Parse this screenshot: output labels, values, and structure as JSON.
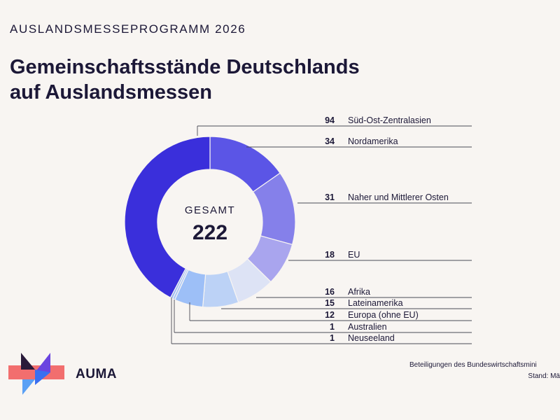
{
  "header": {
    "kicker": "AUSLANDSMESSEPROGRAMM 2026",
    "title_line1": "Gemeinschaftsstände Deutschlands",
    "title_line2": "auf Auslandsmessen"
  },
  "chart_data": {
    "type": "pie",
    "subtype": "donut",
    "center_label": "GESAMT",
    "total": 222,
    "categories": [
      "Süd-Ost-Zentralasien",
      "Nordamerika",
      "Naher und Mittlerer Osten",
      "EU",
      "Afrika",
      "Lateinamerika",
      "Europa (ohne EU)",
      "Australien",
      "Neuseeland"
    ],
    "values": [
      94,
      34,
      31,
      18,
      16,
      15,
      12,
      1,
      1
    ],
    "colors": [
      "#3a2fdb",
      "#5b55e6",
      "#8580ea",
      "#a9a5ee",
      "#dde3f5",
      "#bcd2f6",
      "#9dbff7",
      "#a8c6f6",
      "#9cbaf2"
    ],
    "legend": "right, leader lines"
  },
  "logo": {
    "text": "AUMA"
  },
  "footer": {
    "line1": "Beteiligungen des Bundeswirtschaftsmini",
    "line2": "Stand: Mä"
  }
}
